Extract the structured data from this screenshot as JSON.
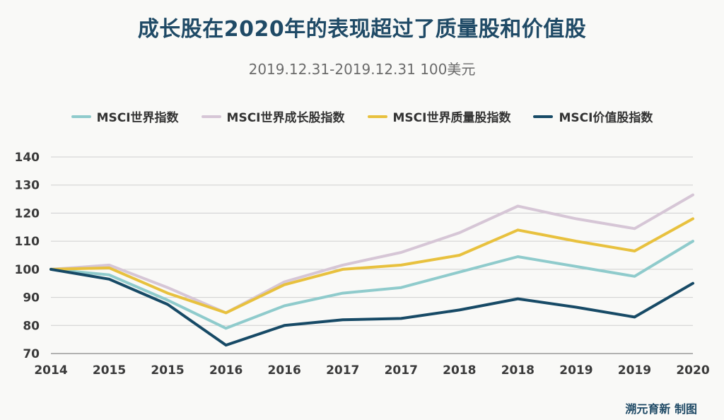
{
  "chart_data": {
    "type": "line",
    "title": "成长股在2020年的表现超过了质量股和价值股",
    "subtitle": "2019.12.31-2019.12.31 100美元",
    "categories": [
      "2014",
      "2015",
      "2015",
      "2016",
      "2016",
      "2017",
      "2017",
      "2018",
      "2018",
      "2019",
      "2019",
      "2020"
    ],
    "ylim": [
      70,
      140
    ],
    "yticks": [
      70,
      80,
      90,
      100,
      110,
      120,
      130,
      140
    ],
    "grid": true,
    "legend_position": "top",
    "series": [
      {
        "name": "MSCI世界指数",
        "color": "#8fcbcc",
        "values": [
          100,
          98,
          89,
          79,
          87,
          91.5,
          93.5,
          99,
          104.5,
          101,
          97.5,
          110
        ]
      },
      {
        "name": "MSCI世界成长股指数",
        "color": "#d6c6d6",
        "values": [
          100,
          101.5,
          93.5,
          84.5,
          95.5,
          101.5,
          106,
          113,
          122.5,
          118,
          114.5,
          126.5
        ]
      },
      {
        "name": "MSCI世界质量股指数",
        "color": "#e8c13e",
        "values": [
          100,
          100.5,
          91.5,
          84.5,
          94.5,
          100,
          101.5,
          105,
          114,
          110,
          106.5,
          118
        ]
      },
      {
        "name": "MSCI价值股指数",
        "color": "#174a66",
        "values": [
          100,
          96.5,
          87.5,
          73,
          80,
          82,
          82.5,
          85.5,
          89.5,
          86.5,
          83,
          95
        ]
      }
    ]
  },
  "credit": "溯元育新 制图"
}
